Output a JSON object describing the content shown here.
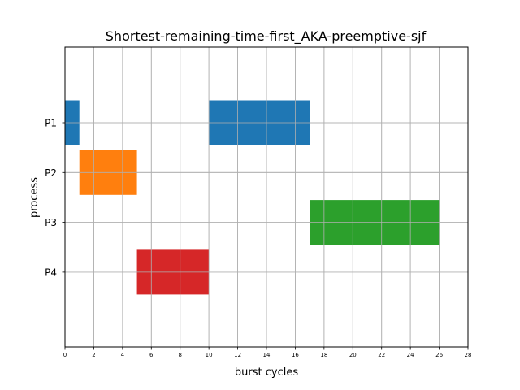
{
  "chart_data": {
    "type": "gantt",
    "title": "Shortest-remaining-time-first_AKA-preemptive-sjf",
    "xlabel": "burst cycles",
    "ylabel": "process",
    "xlim": [
      0,
      28
    ],
    "xticks": [
      "0",
      "2",
      "4",
      "6",
      "8",
      "10",
      "12",
      "14",
      "16",
      "18",
      "20",
      "22",
      "24",
      "26",
      "28"
    ],
    "categories": [
      "P1",
      "P2",
      "P3",
      "P4"
    ],
    "grid": true,
    "bars": [
      {
        "process": "P1",
        "start": 0,
        "end": 1,
        "color": "#1f77b4"
      },
      {
        "process": "P1",
        "start": 10,
        "end": 17,
        "color": "#1f77b4"
      },
      {
        "process": "P2",
        "start": 1,
        "end": 5,
        "color": "#ff7f0e"
      },
      {
        "process": "P3",
        "start": 17,
        "end": 26,
        "color": "#2ca02c"
      },
      {
        "process": "P4",
        "start": 5,
        "end": 10,
        "color": "#d62728"
      }
    ]
  }
}
